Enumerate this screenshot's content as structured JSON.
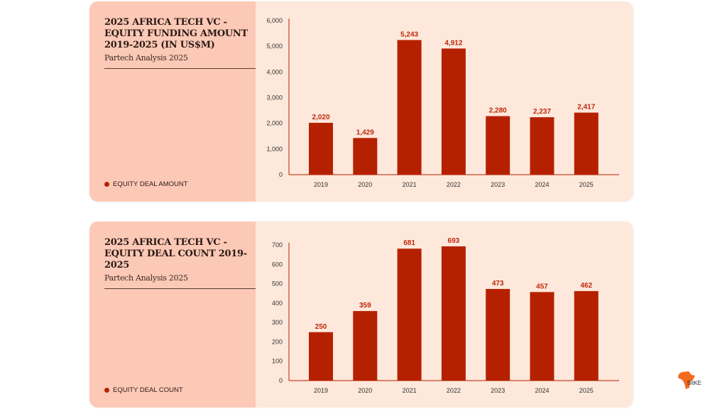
{
  "colors": {
    "bar": "#b52100",
    "label": "#c0280a",
    "axis": "#b52100"
  },
  "watermark": "BitKE",
  "chart_data": [
    {
      "type": "bar",
      "title": "2025 AFRICA TECH VC - EQUITY FUNDING AMOUNT 2019-2025 (IN US$M)",
      "subtitle": "Partech Analysis 2025",
      "legend": "EQUITY DEAL AMOUNT",
      "legend_position": "bottom-left",
      "categories": [
        "2019",
        "2020",
        "2021",
        "2022",
        "2023",
        "2024",
        "2025"
      ],
      "values": [
        2020,
        1429,
        5243,
        4912,
        2280,
        2237,
        2417
      ],
      "value_labels": [
        "2,020",
        "1,429",
        "5,243",
        "4,912",
        "2,280",
        "2,237",
        "2,417"
      ],
      "yticks": [
        "0",
        "1,000",
        "2,000",
        "3,000",
        "4,000",
        "5,000",
        "6,000"
      ],
      "ylim": [
        0,
        6000
      ],
      "ystep": 1000
    },
    {
      "type": "bar",
      "title": "2025 AFRICA TECH VC - EQUITY DEAL COUNT 2019-2025",
      "subtitle": "Partech Analysis 2025",
      "legend": "EQUITY DEAL COUNT",
      "legend_position": "bottom-left",
      "categories": [
        "2019",
        "2020",
        "2021",
        "2022",
        "2023",
        "2024",
        "2025"
      ],
      "values": [
        250,
        359,
        681,
        693,
        473,
        457,
        462
      ],
      "value_labels": [
        "250",
        "359",
        "681",
        "693",
        "473",
        "457",
        "462"
      ],
      "yticks": [
        "0",
        "100",
        "200",
        "300",
        "400",
        "500",
        "600",
        "700"
      ],
      "ylim": [
        0,
        700
      ],
      "ystep": 100
    }
  ]
}
